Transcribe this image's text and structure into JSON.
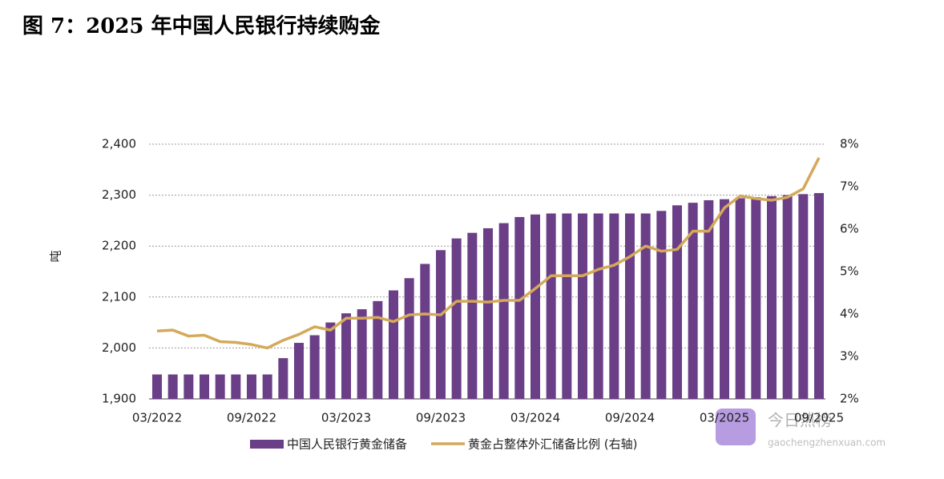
{
  "chart_data": {
    "type": "bar_line",
    "title": "图 7：2025 年中国人民银行持续购金",
    "y_label": "吨",
    "categories": [
      "03/2022",
      null,
      null,
      null,
      null,
      null,
      "09/2022",
      null,
      null,
      null,
      null,
      null,
      "03/2023",
      null,
      null,
      null,
      null,
      null,
      "09/2023",
      null,
      null,
      null,
      null,
      null,
      "03/2024",
      null,
      null,
      null,
      null,
      null,
      "09/2024",
      null,
      null,
      null,
      null,
      null,
      "03/2025",
      null,
      null,
      null,
      null,
      null,
      "09/2025"
    ],
    "series": [
      {
        "name": "中国人民银行黄金储备",
        "type": "bar",
        "color": "#6b3f87",
        "values": [
          1948,
          1948,
          1948,
          1948,
          1948,
          1948,
          1948,
          1948,
          1980,
          2010,
          2025,
          2050,
          2068,
          2076,
          2092,
          2113,
          2137,
          2165,
          2192,
          2215,
          2226,
          2235,
          2245,
          2257,
          2262,
          2264,
          2264,
          2264,
          2264,
          2264,
          2264,
          2264,
          2269,
          2280,
          2285,
          2290,
          2292,
          2294,
          2296,
          2298,
          2300,
          2302,
          2304
        ]
      },
      {
        "name": "黄金占整体外汇储备比例 (右轴)",
        "type": "line",
        "axis": "y2",
        "color": "#d4a95a",
        "values": [
          3.6,
          3.62,
          3.48,
          3.5,
          3.35,
          3.33,
          3.28,
          3.2,
          3.38,
          3.52,
          3.7,
          3.62,
          3.9,
          3.9,
          3.92,
          3.82,
          3.98,
          4.0,
          3.98,
          4.3,
          4.3,
          4.28,
          4.32,
          4.32,
          4.6,
          4.9,
          4.9,
          4.9,
          5.05,
          5.15,
          5.35,
          5.6,
          5.48,
          5.52,
          5.95,
          5.95,
          6.5,
          6.78,
          6.72,
          6.68,
          6.75,
          6.95,
          7.68
        ]
      }
    ],
    "ylim": [
      1900,
      2400
    ],
    "yticks": [
      {
        "value": 1900,
        "label": "1,900"
      },
      {
        "value": 2000,
        "label": "2,000"
      },
      {
        "value": 2100,
        "label": "2,100"
      },
      {
        "value": 2200,
        "label": "2,200"
      },
      {
        "value": 2300,
        "label": "2,300"
      },
      {
        "value": 2400,
        "label": "2,400"
      }
    ],
    "y2lim": [
      2,
      8
    ],
    "y2ticks": [
      {
        "value": 2,
        "label": "2%"
      },
      {
        "value": 3,
        "label": "3%"
      },
      {
        "value": 4,
        "label": "4%"
      },
      {
        "value": 5,
        "label": "5%"
      },
      {
        "value": 6,
        "label": "6%"
      },
      {
        "value": 7,
        "label": "7%"
      },
      {
        "value": 8,
        "label": "8%"
      }
    ],
    "grid": true,
    "legend": "bottom"
  },
  "watermark": {
    "title": "今日热榜",
    "url": "gaochengzhenxuan.com"
  }
}
